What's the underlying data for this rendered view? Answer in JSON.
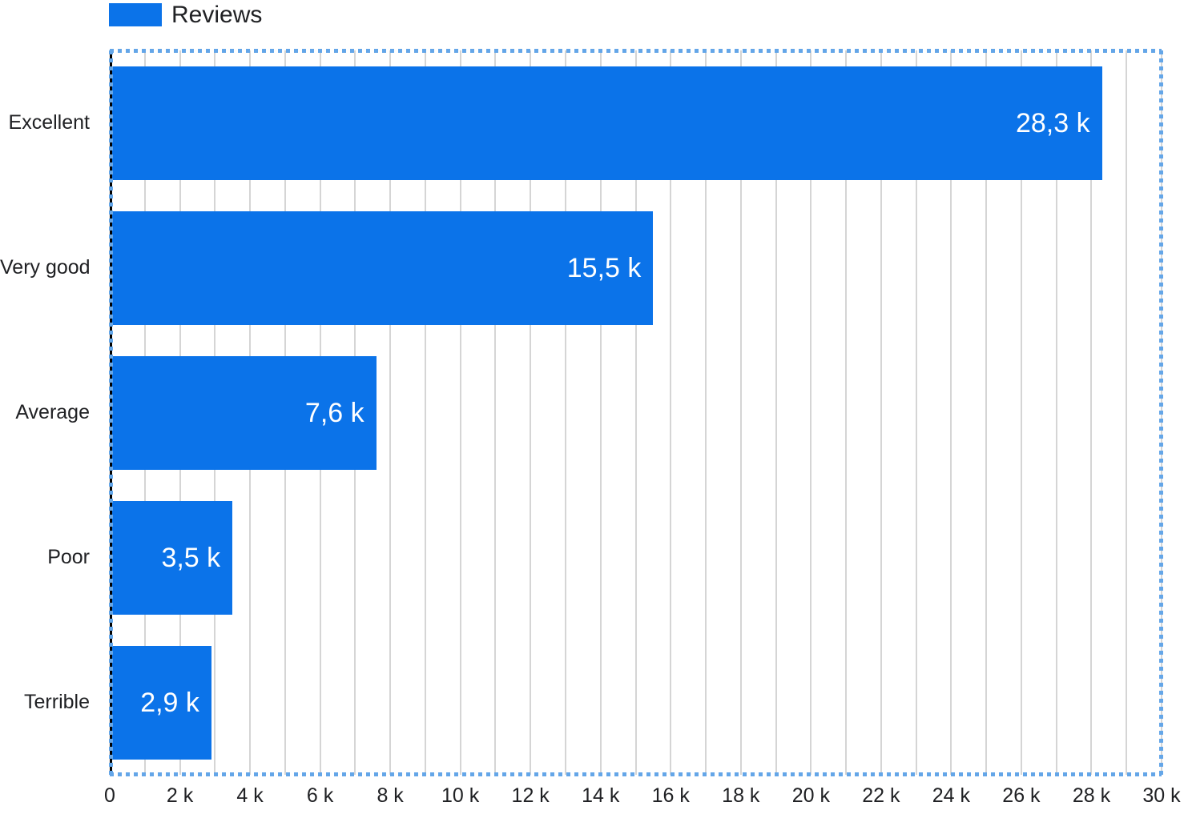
{
  "chart_data": {
    "type": "bar",
    "orientation": "horizontal",
    "title": "",
    "legend_entries": [
      "Reviews"
    ],
    "legend_position": "top-left",
    "categories": [
      "Excellent",
      "Very good",
      "Average",
      "Poor",
      "Terrible"
    ],
    "series": [
      {
        "name": "Reviews",
        "values": [
          28300,
          15500,
          7600,
          3500,
          2900
        ],
        "value_labels": [
          "28,3 k",
          "15,5 k",
          "7,6 k",
          "3,5 k",
          "2,9 k"
        ]
      }
    ],
    "xlim": [
      0,
      30000
    ],
    "x_tick_step": 2000,
    "x_grid_step": 1000,
    "x_tick_labels": [
      "0",
      "2 k",
      "4 k",
      "6 k",
      "8 k",
      "10 k",
      "12 k",
      "14 k",
      "16 k",
      "18 k",
      "20 k",
      "22 k",
      "24 k",
      "26 k",
      "28 k",
      "30 k"
    ],
    "grid": true,
    "selection_border": true,
    "colors": {
      "bar": "#0B73E9",
      "grid": "#D5D5D5",
      "selection": "#64A6E8",
      "axis": "#000000",
      "value_label": "#FFFFFF",
      "text": "#202124"
    }
  }
}
